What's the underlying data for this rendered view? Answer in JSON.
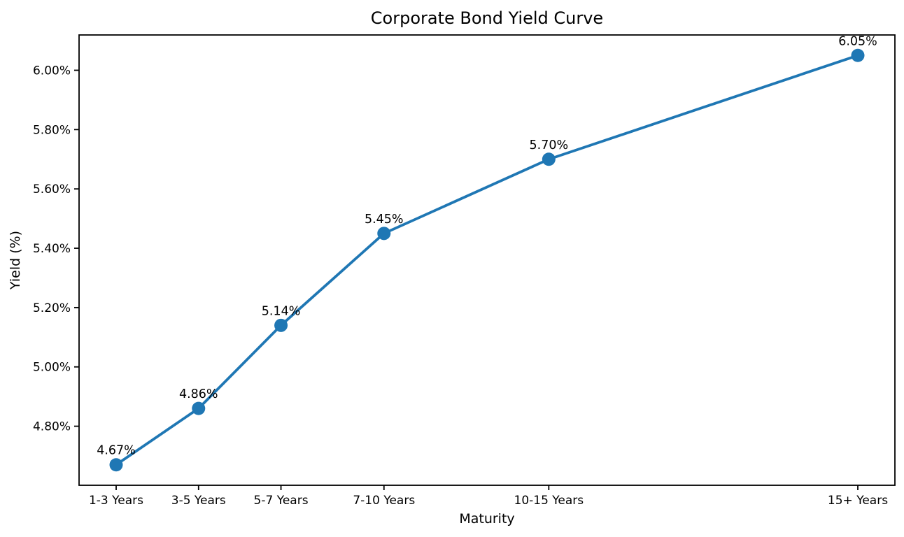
{
  "chart_data": {
    "type": "line",
    "title": "Corporate Bond Yield Curve",
    "xlabel": "Maturity",
    "ylabel": "Yield (%)",
    "categories": [
      "1-3 Years",
      "3-5 Years",
      "5-7 Years",
      "7-10 Years",
      "10-15 Years",
      "15+ Years"
    ],
    "x_positions": [
      2,
      4,
      6,
      8.5,
      12.5,
      20
    ],
    "values": [
      4.67,
      4.86,
      5.14,
      5.45,
      5.7,
      6.05
    ],
    "point_labels": [
      "4.67%",
      "4.86%",
      "5.14%",
      "5.45%",
      "5.70%",
      "6.05%"
    ],
    "yticks": [
      4.8,
      5.0,
      5.2,
      5.4,
      5.6,
      5.8,
      6.0
    ],
    "ytick_labels": [
      "4.80%",
      "5.00%",
      "5.20%",
      "5.40%",
      "5.60%",
      "5.80%",
      "6.00%"
    ],
    "xlim": [
      1.1,
      20.9
    ],
    "ylim": [
      4.601,
      6.119
    ],
    "grid": false,
    "legend": "none",
    "line_color": "#1f77b4",
    "marker_color": "#1f77b4",
    "spine_color": "#000000",
    "text_color": "#000000",
    "background": "#ffffff"
  }
}
